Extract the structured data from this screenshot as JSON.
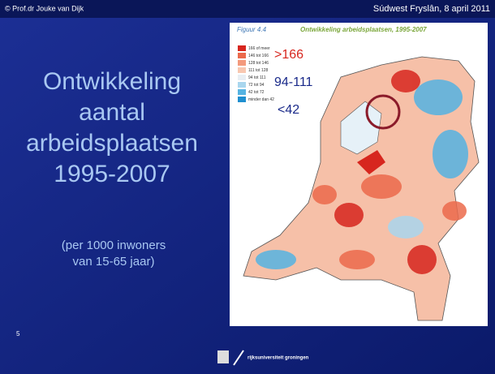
{
  "header": {
    "left": "© Prof.dr Jouke van Dijk",
    "right": "Súdwest Fryslân, 8 april 2011"
  },
  "title_lines": [
    "Ontwikkeling",
    "aantal",
    "arbeidsplaatsen",
    "1995-2007"
  ],
  "subtitle_lines": [
    "(per 1000 inwoners",
    "van 15-65 jaar)"
  ],
  "page_number": "5",
  "figure": {
    "label": "Figuur 4.4",
    "title": "Ontwikkeling arbeidsplaatsen, 1995-2007",
    "legend": [
      {
        "label": "166 of meer",
        "color": "#d7261e"
      },
      {
        "label": "146 tot 166",
        "color": "#ec6a4c"
      },
      {
        "label": "128 tot 146",
        "color": "#f39a7d"
      },
      {
        "label": "111 tot 128",
        "color": "#f8c7b1"
      },
      {
        "label": "94 tot 111",
        "color": "#e8eef3"
      },
      {
        "label": "72 tot 94",
        "color": "#a9d6ee"
      },
      {
        "label": "42 tot 72",
        "color": "#55b3e2"
      },
      {
        "label": "minder dan 42",
        "color": "#1f8fd0"
      }
    ],
    "annotations": [
      ">166",
      "94-111",
      "<42"
    ]
  },
  "footer": {
    "logo": "rijksuniversiteit groningen"
  }
}
